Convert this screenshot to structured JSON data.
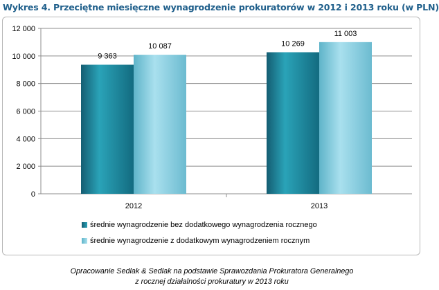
{
  "chart_data": {
    "type": "bar",
    "title": "Wykres 4. Przeciętne miesięczne wynagrodzenie prokuratorów w 2012 i 2013 roku (w PLN)",
    "categories": [
      "2012",
      "2013"
    ],
    "series": [
      {
        "name": "średnie wynagrodzenie bez dodatkowego wynagrodzenia rocznego",
        "values": [
          9363,
          10269
        ],
        "labels": [
          "9 363",
          "10 269"
        ],
        "color": "#1f8fa3"
      },
      {
        "name": "średnie wynagrodzenie z dodatkowym wynagrodzeniem rocznym",
        "values": [
          10087,
          11003
        ],
        "labels": [
          "10 087",
          "11 003"
        ],
        "color": "#8fd0e2"
      }
    ],
    "ylim": [
      0,
      12000
    ],
    "yticks": [
      0,
      2000,
      4000,
      6000,
      8000,
      10000,
      12000
    ],
    "ytick_labels": [
      "0",
      "2 000",
      "4 000",
      "6 000",
      "8 000",
      "10 000",
      "12 000"
    ],
    "xlabel": "",
    "ylabel": "",
    "grid": true,
    "legend_position": "bottom"
  },
  "caption": {
    "line1": "Opracowanie Sedlak & Sedlak na podstawie Sprawozdania Prokuratora Generalnego",
    "line2": "z rocznej działalności prokuratury w 2013 roku"
  }
}
